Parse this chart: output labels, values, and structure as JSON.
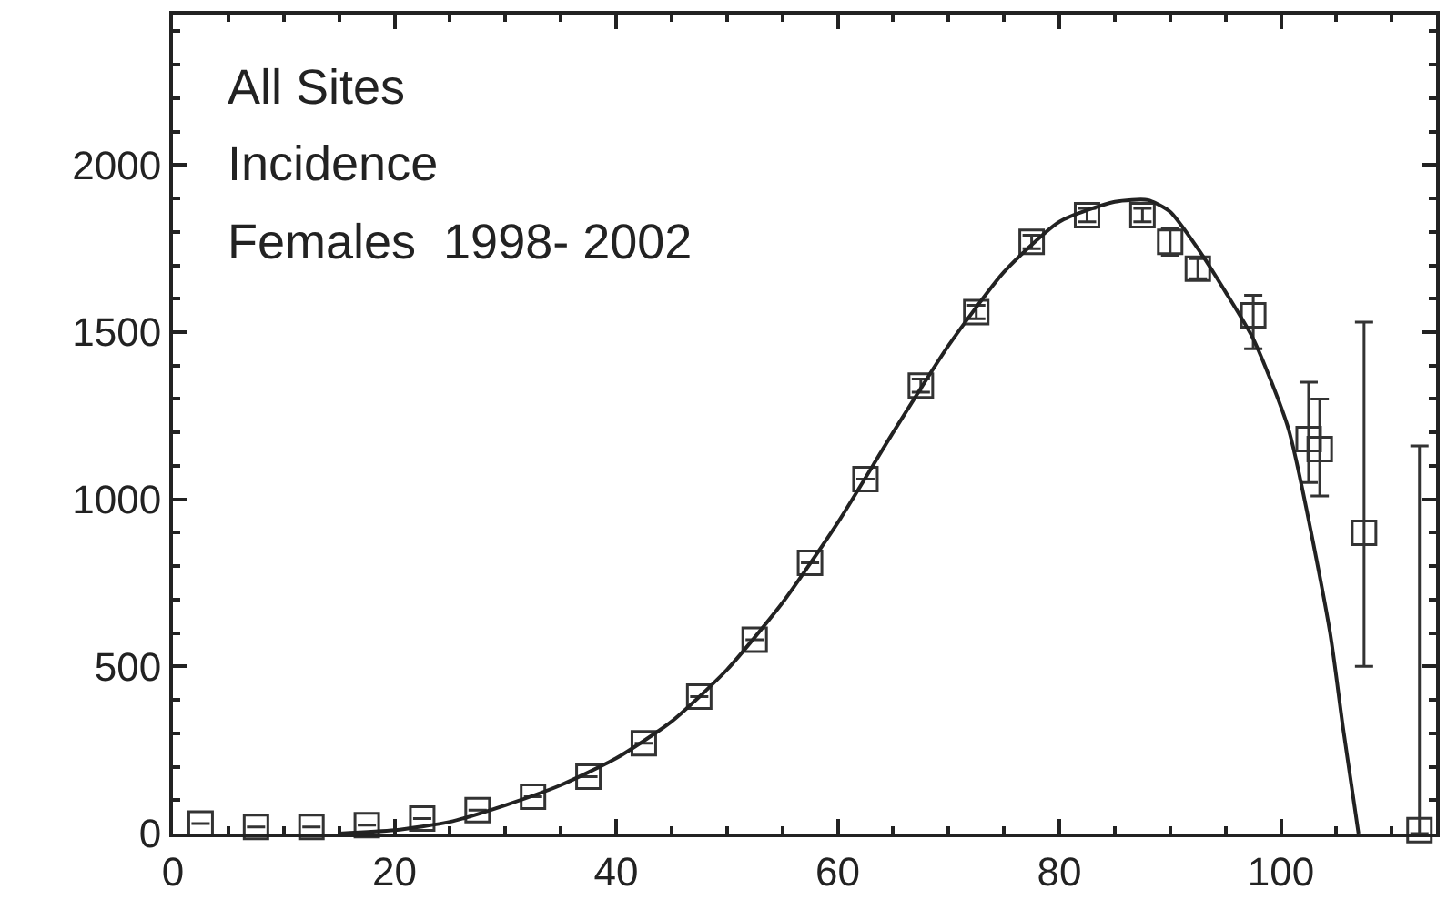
{
  "chart_data": {
    "type": "scatter",
    "annotations": [
      "All Sites",
      "Incidence",
      "Females  1998- 2002"
    ],
    "xlim": [
      0,
      114
    ],
    "xticks": [
      0,
      20,
      40,
      60,
      80,
      100
    ],
    "ylim": [
      0,
      2450
    ],
    "yticks": [
      0,
      500,
      1000,
      1500,
      2000
    ],
    "series": [
      {
        "marker": "square",
        "color": "#333333",
        "x": [
          2.5,
          7.5,
          12.5,
          17.5,
          22.5,
          27.5,
          32.5,
          37.5,
          42.5,
          47.5,
          52.5,
          57.5,
          62.5,
          67.5,
          72.5,
          77.5,
          82.5,
          87.5,
          90,
          92.5,
          97.5,
          102.5,
          103.5,
          107.5,
          112.5
        ],
        "values": [
          30,
          20,
          20,
          25,
          45,
          70,
          110,
          170,
          270,
          410,
          580,
          810,
          1060,
          1340,
          1560,
          1770,
          1850,
          1850,
          1770,
          1690,
          1550,
          1180,
          1150,
          900,
          10
        ],
        "errors": [
          null,
          null,
          null,
          null,
          null,
          null,
          null,
          null,
          null,
          null,
          null,
          null,
          null,
          20,
          20,
          20,
          20,
          20,
          40,
          30,
          [
            1450,
            1610
          ],
          [
            1050,
            1350
          ],
          [
            1010,
            1300
          ],
          [
            500,
            1530
          ],
          [
            0,
            1160
          ]
        ]
      },
      {
        "type": "line",
        "marker": "none",
        "color": "#222222",
        "line_style": "solid",
        "x": [
          15,
          20,
          25,
          30,
          35,
          40,
          45,
          50,
          55,
          60,
          65,
          70,
          75,
          80,
          85,
          88,
          90,
          92.5,
          95,
          97.5,
          100.7,
          104.4,
          105.6,
          107
        ],
        "values": [
          0,
          10,
          35,
          85,
          145,
          225,
          335,
          490,
          690,
          930,
          1200,
          1460,
          1680,
          1830,
          1890,
          1895,
          1860,
          1750,
          1620,
          1480,
          1208,
          607,
          317,
          0
        ]
      }
    ]
  }
}
